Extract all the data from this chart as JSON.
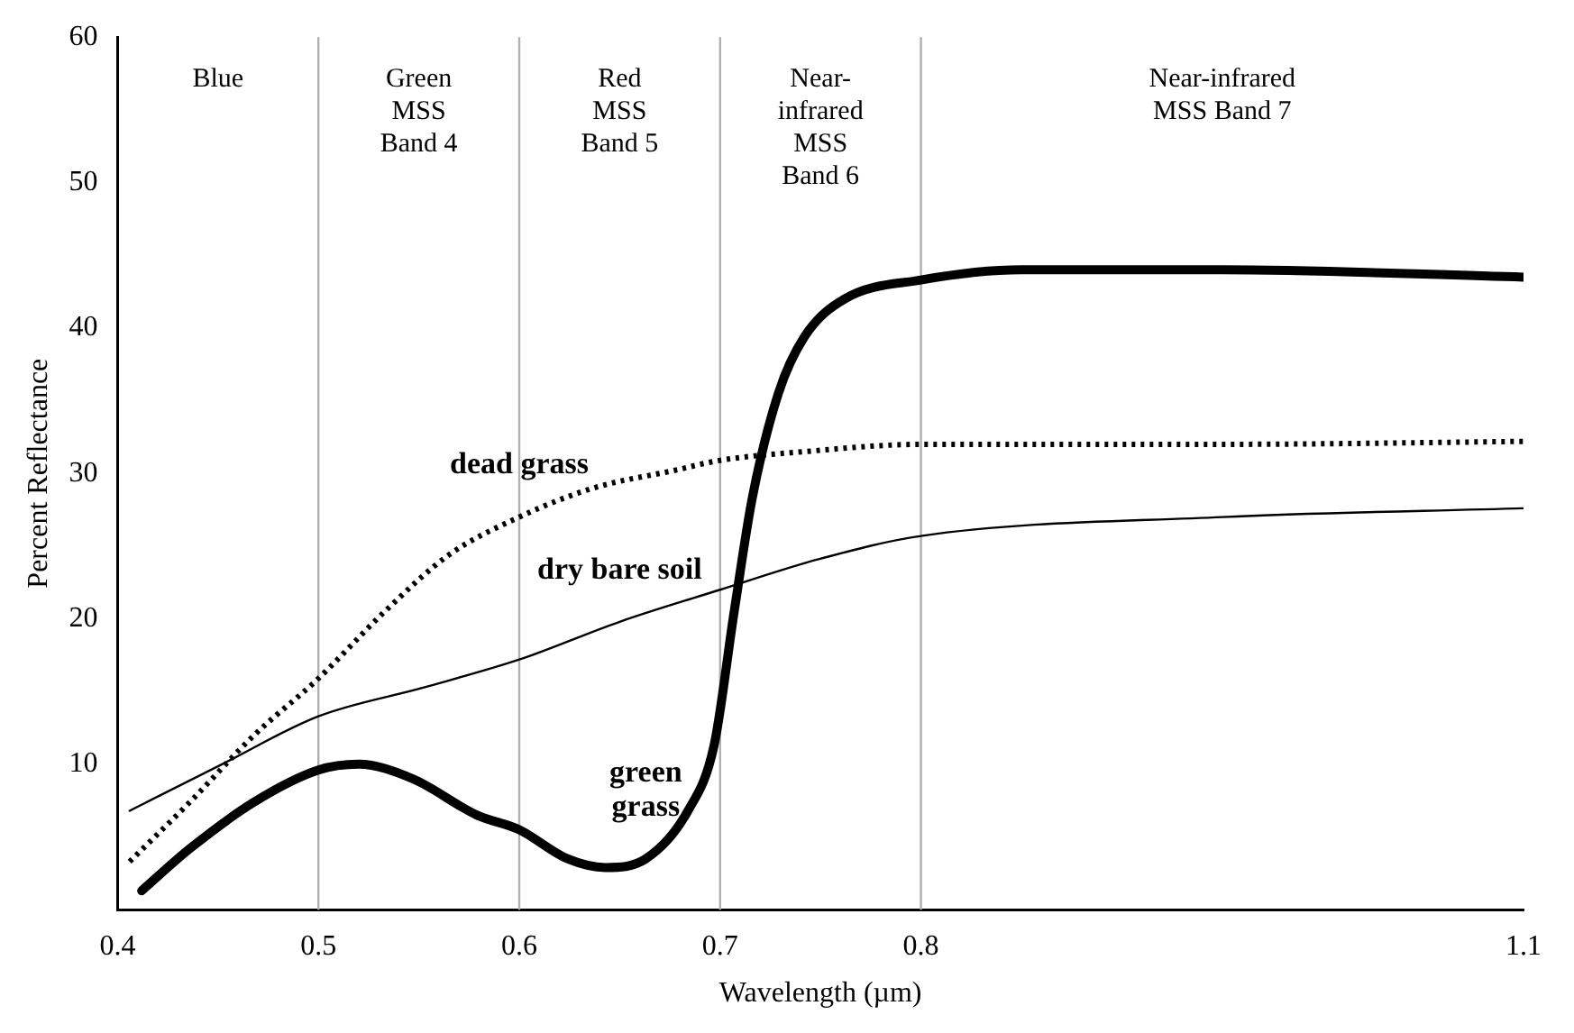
{
  "chart_data": {
    "type": "line",
    "xlabel": "Wavelength (µm)",
    "ylabel": "Percent Reflectance",
    "xlim": [
      0.4,
      1.1
    ],
    "xticks": [
      0.4,
      0.5,
      0.6,
      0.7,
      0.8,
      1.1
    ],
    "ylim": [
      0,
      60
    ],
    "yticks": [
      10,
      20,
      30,
      40,
      50,
      60
    ],
    "grid": false,
    "legend": false,
    "marker": "none",
    "ref_lines": [
      {
        "axis": "x",
        "value": 0.5,
        "color": "#b0b0b0"
      },
      {
        "axis": "x",
        "value": 0.6,
        "color": "#b0b0b0"
      },
      {
        "axis": "x",
        "value": 0.7,
        "color": "#b0b0b0"
      },
      {
        "axis": "x",
        "value": 0.8,
        "color": "#b0b0b0"
      }
    ],
    "annotations": [
      "Blue",
      "Green\nMSS\nBand 4",
      "Red\nMSS\nBand 5",
      "Near-\ninfrared\nMSS\nBand 6",
      "Near-infrared\nMSS Band 7"
    ],
    "series": [
      {
        "name": "green grass",
        "color": "#000000",
        "line_style": "solid",
        "x": [
          0.412,
          0.436,
          0.468,
          0.5,
          0.52,
          0.547,
          0.579,
          0.6,
          0.624,
          0.643,
          0.663,
          0.684,
          0.697,
          0.707,
          0.716,
          0.729,
          0.742,
          0.762,
          0.8,
          0.85,
          0.95,
          1.1
        ],
        "values": [
          1.3,
          4.2,
          7.4,
          9.6,
          10,
          9,
          6.5,
          5.5,
          3.5,
          2.9,
          3.5,
          6.8,
          11.3,
          20.5,
          28.3,
          35.5,
          39.4,
          42,
          43.3,
          44,
          44,
          43.5
        ]
      },
      {
        "name": "dead grass",
        "color": "#000000",
        "line_style": "dotted",
        "x": [
          0.406,
          0.436,
          0.468,
          0.5,
          0.533,
          0.565,
          0.6,
          0.637,
          0.677,
          0.7,
          0.742,
          0.8,
          0.95,
          1.1
        ],
        "values": [
          3.3,
          7.4,
          12,
          15.9,
          20.5,
          24.4,
          27,
          29,
          30.2,
          30.9,
          31.5,
          32,
          32,
          32.2
        ]
      },
      {
        "name": "dry bare soil",
        "color": "#000000",
        "line_style": "solid",
        "x": [
          0.406,
          0.452,
          0.5,
          0.553,
          0.6,
          0.65,
          0.7,
          0.749,
          0.8,
          0.95,
          1.1
        ],
        "values": [
          6.8,
          10,
          13.3,
          15.3,
          17.2,
          19.8,
          22,
          24.1,
          25.7,
          27,
          27.6
        ]
      }
    ]
  }
}
